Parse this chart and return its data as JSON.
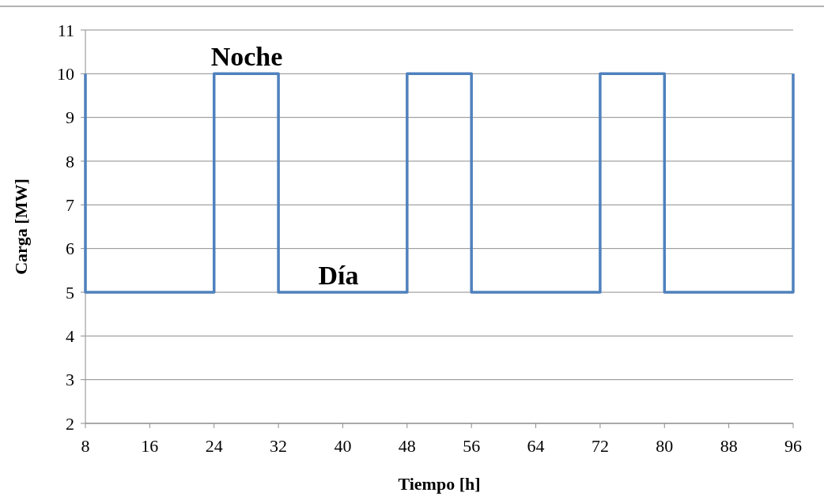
{
  "chart_data": {
    "type": "line",
    "xlabel": "Tiempo [h]",
    "ylabel": "Carga [MW]",
    "series": [
      {
        "color": "#4f81bd",
        "x": [
          8,
          8,
          24,
          24,
          32,
          32,
          48,
          48,
          56,
          56,
          72,
          72,
          80,
          80,
          96,
          96
        ],
        "values": [
          10,
          5,
          5,
          10,
          10,
          5,
          5,
          10,
          10,
          5,
          5,
          10,
          10,
          5,
          5,
          10
        ]
      }
    ],
    "xlim": [
      8,
      96
    ],
    "xticks": [
      8,
      16,
      24,
      32,
      40,
      48,
      56,
      64,
      72,
      80,
      88,
      96
    ],
    "ylim": [
      2,
      11
    ],
    "yticks": [
      2,
      3,
      4,
      5,
      6,
      7,
      8,
      9,
      10,
      11
    ],
    "grid": "y",
    "marker": "none",
    "line_style": "solid",
    "annotations": [
      "Noche",
      "Día"
    ]
  }
}
